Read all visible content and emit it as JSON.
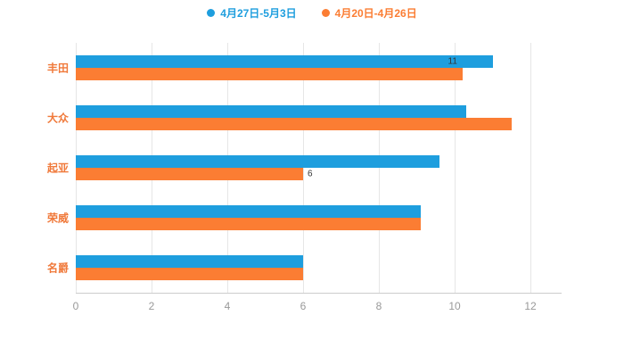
{
  "colors": {
    "series_blue": "#1e9ede",
    "series_orange": "#fb7d33",
    "category_label": "#f0793a",
    "tick_label": "#999999",
    "gridline": "#e6e6e6",
    "axis_line": "#cccccc",
    "background": "#ffffff"
  },
  "legend": {
    "items": [
      {
        "label": "4月27日-5月3日",
        "color": "#1e9ede"
      },
      {
        "label": "4月20日-4月26日",
        "color": "#fb7d33"
      }
    ]
  },
  "chart_data": {
    "type": "bar",
    "orientation": "horizontal",
    "title": "",
    "xlabel": "",
    "ylabel": "",
    "categories": [
      "丰田",
      "大众",
      "起亚",
      "荣威",
      "名爵"
    ],
    "series": [
      {
        "name": "4月27日-5月3日",
        "color": "#1e9ede",
        "values": [
          11.0,
          10.3,
          9.6,
          9.1,
          6.0
        ]
      },
      {
        "name": "4月20日-4月26日",
        "color": "#fb7d33",
        "values": [
          10.2,
          11.5,
          6.0,
          9.1,
          6.0
        ]
      }
    ],
    "xlim": [
      0,
      12
    ],
    "xticks": [
      0,
      2,
      4,
      6,
      8,
      10,
      12
    ],
    "xtick_labels": [
      "0",
      "2",
      "4",
      "6",
      "8",
      "10",
      "12"
    ],
    "grid": true,
    "legend_position": "top",
    "bar_labels": [
      {
        "series": 0,
        "category_index": 0,
        "text": "11"
      },
      {
        "series": 1,
        "category_index": 2,
        "text": "6"
      }
    ]
  }
}
